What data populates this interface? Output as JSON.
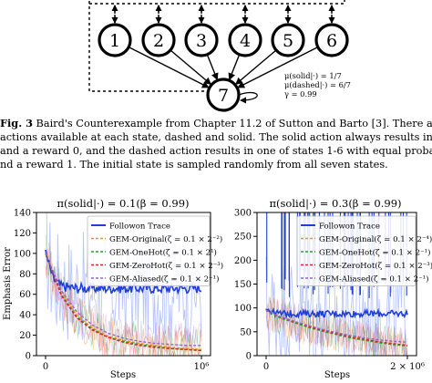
{
  "diagram": {
    "states": [
      "1",
      "2",
      "3",
      "4",
      "5",
      "6"
    ],
    "center_state": "7",
    "annotations": [
      "μ(solid|·) = 1/7",
      "μ(dashed|·) = 6/7",
      "γ = 0.99"
    ]
  },
  "caption": {
    "label": "Fig. 3",
    "lines": [
      "Baird's Counterexample from Chapter 11.2 of Sutton and Barto [3]. There are tw",
      "actions available at each state, dashed and solid. The solid action always results in the stat",
      " and a reward 0, and the dashed action results in one of states 1-6 with equal probabili",
      "nd a reward 1. The initial state is sampled randomly from all seven states."
    ]
  },
  "chart_data": [
    {
      "type": "line",
      "title": "π(solid|·) = 0.1(β = 0.99)",
      "xlabel": "Steps",
      "ylabel": "Emphasis Error",
      "xlim": [
        0,
        1000000
      ],
      "ylim": [
        0,
        140
      ],
      "xticks": [
        "0",
        "10⁶"
      ],
      "yticks": [
        0,
        20,
        40,
        60,
        80,
        100,
        120,
        140
      ],
      "legend_position": "top-right",
      "series": [
        {
          "name": "Followon Trace",
          "color": "#1f3fd6",
          "x": [
            0,
            50000,
            100000,
            200000,
            400000,
            600000,
            800000,
            1000000
          ],
          "y": [
            100,
            75,
            68,
            66,
            66,
            66,
            66,
            66
          ]
        },
        {
          "name": "GEM-Original(ζ = 0.1 × 2⁻²)",
          "color": "#ff8c1a",
          "x": [
            0,
            100000,
            200000,
            300000,
            400000,
            500000,
            600000,
            700000,
            800000,
            900000,
            1000000
          ],
          "y": [
            100,
            62,
            40,
            27,
            19,
            15,
            12,
            10,
            8,
            7,
            6
          ]
        },
        {
          "name": "GEM-OneHot(ζ = 0.1 × 2¹)",
          "color": "#2ca02c",
          "x": [
            0,
            100000,
            200000,
            300000,
            400000,
            500000,
            600000,
            700000,
            800000,
            900000,
            1000000
          ],
          "y": [
            100,
            60,
            38,
            26,
            18,
            14,
            11,
            9,
            7,
            6,
            5
          ]
        },
        {
          "name": "GEM-ZeroHot(ζ = 0.1 × 2⁻³)",
          "color": "#d62728",
          "x": [
            0,
            100000,
            200000,
            300000,
            400000,
            500000,
            600000,
            700000,
            800000,
            900000,
            1000000
          ],
          "y": [
            100,
            59,
            37,
            25,
            18,
            13,
            10,
            8,
            7,
            6,
            5
          ]
        },
        {
          "name": "GEM-Aliased(ζ = 0.1 × 2⁻¹)",
          "color": "#9467bd",
          "x": [
            0,
            100000,
            200000,
            300000,
            400000,
            500000,
            600000,
            700000,
            800000,
            900000,
            1000000
          ],
          "y": [
            100,
            64,
            43,
            30,
            22,
            17,
            14,
            12,
            11,
            10,
            10
          ]
        }
      ]
    },
    {
      "type": "line",
      "title": "π(solid|·) = 0.3(β = 0.99)",
      "xlabel": "Steps",
      "ylabel": "",
      "xlim": [
        0,
        2000000
      ],
      "ylim": [
        0,
        300
      ],
      "xticks": [
        "0",
        "2 × 10⁶"
      ],
      "yticks": [
        0,
        50,
        100,
        150,
        200,
        250,
        300
      ],
      "legend_position": "top-right",
      "series": [
        {
          "name": "Followon Trace",
          "color": "#1f3fd6",
          "x": [
            0,
            100000,
            200000,
            500000,
            1000000,
            1500000,
            2000000
          ],
          "y": [
            100,
            90,
            88,
            88,
            88,
            88,
            88
          ]
        },
        {
          "name": "GEM-Original(ζ = 0.1 × 2⁻⁴)",
          "color": "#ff8c1a",
          "x": [
            0,
            200000,
            400000,
            600000,
            800000,
            1000000,
            1200000,
            1400000,
            1600000,
            1800000,
            2000000
          ],
          "y": [
            95,
            80,
            70,
            60,
            52,
            45,
            38,
            33,
            28,
            24,
            21
          ]
        },
        {
          "name": "GEM-OneHot(ζ = 0.1 × 2⁻¹)",
          "color": "#2ca02c",
          "x": [
            0,
            200000,
            400000,
            600000,
            800000,
            1000000,
            1200000,
            1400000,
            1600000,
            1800000,
            2000000
          ],
          "y": [
            95,
            79,
            69,
            59,
            51,
            44,
            37,
            32,
            27,
            23,
            20
          ]
        },
        {
          "name": "GEM-ZeroHot(ζ = 0.1 × 2⁻³)",
          "color": "#d62728",
          "x": [
            0,
            200000,
            400000,
            600000,
            800000,
            1000000,
            1200000,
            1400000,
            1600000,
            1800000,
            2000000
          ],
          "y": [
            95,
            81,
            71,
            61,
            53,
            46,
            39,
            34,
            29,
            25,
            22
          ]
        },
        {
          "name": "GEM-Aliased(ζ = 0.1 × 2⁻¹)",
          "color": "#9467bd",
          "x": [
            0,
            200000,
            400000,
            600000,
            800000,
            1000000,
            1200000,
            1400000,
            1600000,
            1800000,
            2000000
          ],
          "y": [
            95,
            82,
            72,
            63,
            55,
            48,
            42,
            37,
            33,
            30,
            28
          ]
        }
      ]
    }
  ]
}
